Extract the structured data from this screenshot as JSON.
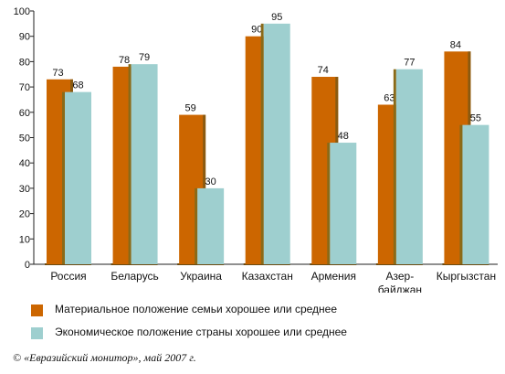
{
  "chart_data": {
    "type": "bar",
    "categories": [
      "Россия",
      "Беларусь",
      "Украина",
      "Казахстан",
      "Армения",
      "Азер-\nбайджан",
      "Кыргызстан"
    ],
    "ylim": [
      0,
      100
    ],
    "yticks": [
      0,
      10,
      20,
      30,
      40,
      50,
      60,
      70,
      80,
      90,
      100
    ],
    "grid": false,
    "legend_position": "bottom",
    "series": [
      {
        "name": "Материальное положение семьи хорошее или среднее",
        "color": "#cc6600",
        "shade": "#8a5a10",
        "values": [
          73,
          78,
          59,
          90,
          74,
          63,
          84
        ],
        "labels": [
          "73",
          "78",
          "59",
          "90",
          "74",
          "63",
          "84"
        ]
      },
      {
        "name": "Экономическое положение страны хорошее или среднее",
        "color": "#9ecfcf",
        "shade": "#8a6a18",
        "values": [
          68,
          79,
          30,
          95,
          48,
          77,
          55
        ],
        "labels": [
          "68",
          "79",
          "30",
          "95",
          "48",
          "77",
          "55"
        ]
      }
    ]
  },
  "source": "© «Евразийский монитор», май 2007 г."
}
